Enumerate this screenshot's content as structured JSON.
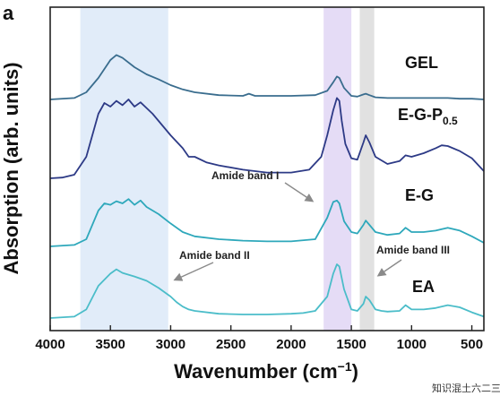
{
  "panel_label": "a",
  "watermark": "知识混土六二三",
  "chart_data": {
    "type": "line",
    "title": "",
    "xlabel": "Wavenumber (cm",
    "xlabel_sup": "−1",
    "xlabel_close": ")",
    "ylabel": "Absorption (arb. units)",
    "xlim": [
      4000,
      400
    ],
    "x_reversed": true,
    "x_ticks": [
      4000,
      3500,
      3000,
      2500,
      2000,
      1500,
      1000,
      500
    ],
    "y_ticks_shown": false,
    "grid": false,
    "bands": [
      {
        "from": 3750,
        "to": 3020,
        "color": "#dce9f8"
      },
      {
        "from": 1730,
        "to": 1500,
        "color": "#e0d6f5"
      },
      {
        "from": 1430,
        "to": 1310,
        "color": "#dcdcdc"
      }
    ],
    "series": [
      {
        "name": "EA",
        "color": "#4bbdc9",
        "offset": 0,
        "x": [
          4000,
          3800,
          3700,
          3600,
          3500,
          3450,
          3400,
          3300,
          3200,
          3100,
          3000,
          2950,
          2900,
          2850,
          2800,
          2600,
          2400,
          2200,
          2000,
          1900,
          1800,
          1700,
          1650,
          1620,
          1600,
          1560,
          1500,
          1450,
          1400,
          1380,
          1350,
          1300,
          1250,
          1200,
          1100,
          1050,
          1000,
          900,
          800,
          700,
          600,
          500,
          400
        ],
        "y": [
          0.0,
          0.02,
          0.12,
          0.45,
          0.62,
          0.68,
          0.63,
          0.58,
          0.52,
          0.42,
          0.3,
          0.22,
          0.16,
          0.12,
          0.1,
          0.06,
          0.05,
          0.05,
          0.06,
          0.07,
          0.1,
          0.3,
          0.62,
          0.75,
          0.72,
          0.4,
          0.12,
          0.1,
          0.2,
          0.3,
          0.25,
          0.12,
          0.1,
          0.09,
          0.1,
          0.18,
          0.12,
          0.12,
          0.14,
          0.18,
          0.15,
          0.08,
          0.02
        ]
      },
      {
        "name": "E-G",
        "color": "#2ea8bb",
        "offset": 1.0,
        "x": [
          4000,
          3800,
          3700,
          3600,
          3550,
          3500,
          3450,
          3400,
          3350,
          3300,
          3250,
          3200,
          3100,
          3000,
          2900,
          2800,
          2600,
          2400,
          2200,
          2000,
          1800,
          1700,
          1650,
          1620,
          1600,
          1560,
          1500,
          1450,
          1400,
          1380,
          1350,
          1300,
          1200,
          1100,
          1050,
          1000,
          900,
          800,
          700,
          600,
          500,
          400
        ],
        "y": [
          0.0,
          0.02,
          0.1,
          0.5,
          0.6,
          0.58,
          0.63,
          0.6,
          0.66,
          0.58,
          0.64,
          0.55,
          0.45,
          0.32,
          0.2,
          0.14,
          0.1,
          0.08,
          0.07,
          0.07,
          0.1,
          0.4,
          0.62,
          0.64,
          0.6,
          0.35,
          0.2,
          0.18,
          0.3,
          0.36,
          0.3,
          0.2,
          0.16,
          0.18,
          0.26,
          0.2,
          0.2,
          0.22,
          0.26,
          0.22,
          0.14,
          0.05
        ]
      },
      {
        "name": "E-G-P",
        "name_sub": "0.5",
        "color": "#2d3a86",
        "offset": 1.95,
        "x": [
          4000,
          3900,
          3800,
          3700,
          3600,
          3550,
          3500,
          3450,
          3400,
          3350,
          3300,
          3250,
          3200,
          3150,
          3100,
          3000,
          2900,
          2850,
          2800,
          2700,
          2600,
          2400,
          2200,
          2000,
          1850,
          1750,
          1700,
          1650,
          1620,
          1600,
          1580,
          1550,
          1500,
          1450,
          1400,
          1380,
          1350,
          1300,
          1200,
          1100,
          1050,
          1000,
          900,
          800,
          750,
          700,
          600,
          500,
          400
        ],
        "y": [
          0.0,
          0.01,
          0.05,
          0.3,
          0.9,
          1.05,
          1.0,
          1.08,
          1.02,
          1.1,
          1.0,
          1.06,
          0.98,
          0.9,
          0.8,
          0.6,
          0.42,
          0.3,
          0.3,
          0.22,
          0.18,
          0.12,
          0.08,
          0.08,
          0.12,
          0.3,
          0.6,
          0.95,
          1.12,
          1.08,
          0.8,
          0.48,
          0.28,
          0.26,
          0.5,
          0.6,
          0.5,
          0.3,
          0.2,
          0.24,
          0.32,
          0.3,
          0.35,
          0.42,
          0.46,
          0.45,
          0.38,
          0.28,
          0.1
        ]
      },
      {
        "name": "GEL",
        "color": "#3a6d8e",
        "offset": 3.05,
        "x": [
          4000,
          3800,
          3700,
          3600,
          3500,
          3450,
          3400,
          3300,
          3200,
          3100,
          3000,
          2900,
          2800,
          2600,
          2400,
          2350,
          2300,
          2200,
          2000,
          1800,
          1700,
          1650,
          1620,
          1600,
          1560,
          1500,
          1450,
          1400,
          1380,
          1350,
          1300,
          1200,
          1100,
          1000,
          900,
          800,
          700,
          600,
          500,
          400
        ],
        "y": [
          0.0,
          0.02,
          0.1,
          0.3,
          0.55,
          0.62,
          0.58,
          0.45,
          0.35,
          0.28,
          0.2,
          0.14,
          0.1,
          0.06,
          0.05,
          0.08,
          0.05,
          0.05,
          0.05,
          0.06,
          0.12,
          0.24,
          0.32,
          0.3,
          0.16,
          0.05,
          0.04,
          0.07,
          0.08,
          0.06,
          0.03,
          0.02,
          0.02,
          0.02,
          0.02,
          0.02,
          0.02,
          0.01,
          0.01,
          0.0
        ]
      }
    ],
    "annotations": [
      {
        "text": "Amide band I",
        "arrow_to_x": 1720
      },
      {
        "text": "Amide band II",
        "arrow_to_x": 3600
      },
      {
        "text": "Amide band III",
        "arrow_to_x": 1390
      }
    ]
  }
}
